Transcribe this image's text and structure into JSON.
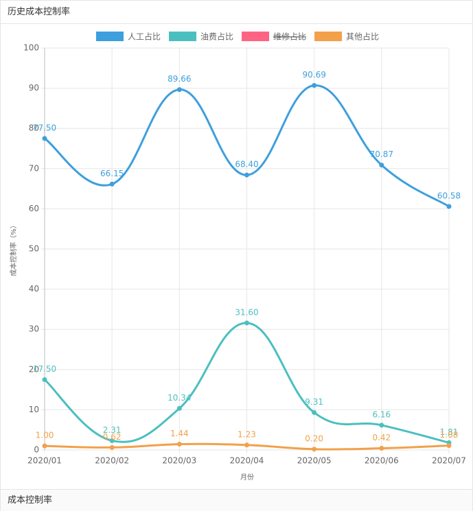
{
  "header": {
    "title": "历史成本控制率"
  },
  "footer": {
    "title": "成本控制率"
  },
  "chart_data": {
    "type": "line",
    "xlabel": "月份",
    "ylabel": "成本控制率（%）",
    "categories": [
      "2020/01",
      "2020/02",
      "2020/03",
      "2020/04",
      "2020/05",
      "2020/06",
      "2020/07"
    ],
    "series": [
      {
        "name": "人工占比",
        "color": "#3d9fdd",
        "values": [
          77.5,
          66.15,
          89.66,
          68.4,
          90.69,
          70.87,
          60.58
        ],
        "value_labels": [
          "77.50",
          "66.15",
          "89.66",
          "68.40",
          "90.69",
          "70.87",
          "60.58"
        ]
      },
      {
        "name": "油费占比",
        "color": "#4bbfbf",
        "values": [
          17.5,
          2.31,
          10.34,
          31.6,
          9.31,
          6.16,
          1.81
        ],
        "value_labels": [
          "17.50",
          "2.31",
          "10.34",
          "31.60",
          "9.31",
          "6.16",
          "1.81"
        ]
      },
      {
        "name": "维修占比",
        "color": "#ff6384",
        "hidden": true,
        "values": [
          null,
          null,
          null,
          null,
          null,
          null,
          null
        ]
      },
      {
        "name": "其他占比",
        "color": "#f2a04a",
        "values": [
          1.0,
          0.62,
          1.44,
          1.23,
          0.2,
          0.42,
          1.08
        ],
        "value_labels": [
          "1.00",
          "0.62",
          "1.44",
          "1.23",
          "0.20",
          "0.42",
          "1.08"
        ]
      }
    ],
    "ylim": [
      0,
      100
    ],
    "yticks": [
      0,
      10,
      20,
      30,
      40,
      50,
      60,
      70,
      80,
      90,
      100
    ],
    "grid": true
  }
}
